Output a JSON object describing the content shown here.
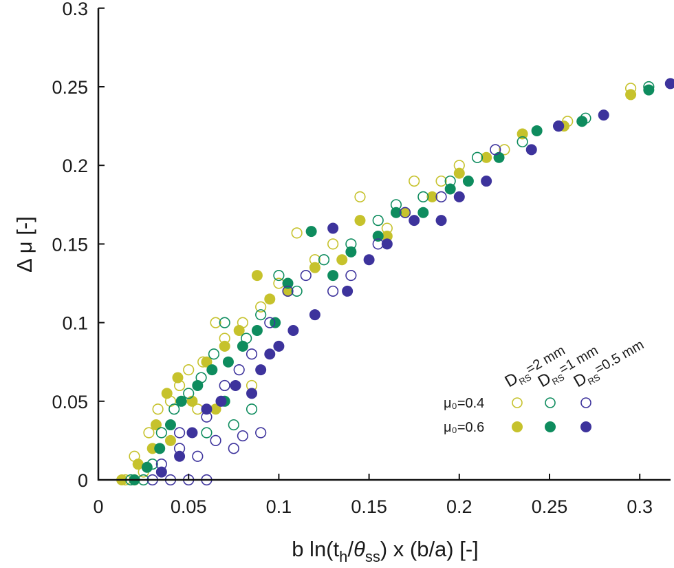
{
  "chart_data": {
    "type": "scatter",
    "xlabel_parts": [
      "b ln(t",
      "h",
      "/",
      "θ",
      "ss",
      ") x (b/a) [-]"
    ],
    "ylabel": "Δ μ [-]",
    "xlim": [
      0,
      0.317
    ],
    "ylim": [
      0,
      0.3
    ],
    "xticks": [
      "0",
      "0.05",
      "0.1",
      "0.15",
      "0.2",
      "0.25",
      "0.3"
    ],
    "yticks": [
      "0",
      "0.05",
      "0.1",
      "0.15",
      "0.2",
      "0.25",
      "0.3"
    ],
    "grid": false,
    "legend_placement": "bottom-right",
    "legend": {
      "columns": [
        {
          "symbol": "D",
          "subscript": "RS",
          "value": "=2 mm",
          "color": "#c6c22c"
        },
        {
          "symbol": "D",
          "subscript": "RS",
          "value": "=1 mm",
          "color": "#0e8c5e"
        },
        {
          "symbol": "D",
          "subscript": "RS",
          "value": "=0.5 mm",
          "color": "#3d339c"
        }
      ],
      "rows": [
        {
          "label": "μ₀=0.4",
          "marker": "open"
        },
        {
          "label": "μ₀=0.6",
          "marker": "filled"
        }
      ]
    },
    "series": [
      {
        "mu0": "0.4",
        "D_RS": "2 mm",
        "color": "#c6c22c",
        "marker": "open",
        "points": [
          [
            0.015,
            0
          ],
          [
            0.02,
            0
          ],
          [
            0.025,
            0.005
          ],
          [
            0.02,
            0.015
          ],
          [
            0.028,
            0.03
          ],
          [
            0.033,
            0.045
          ],
          [
            0.04,
            0.05
          ],
          [
            0.045,
            0.06
          ],
          [
            0.05,
            0.07
          ],
          [
            0.058,
            0.075
          ],
          [
            0.065,
            0.1
          ],
          [
            0.07,
            0.09
          ],
          [
            0.08,
            0.1
          ],
          [
            0.09,
            0.11
          ],
          [
            0.1,
            0.125
          ],
          [
            0.11,
            0.157
          ],
          [
            0.12,
            0.14
          ],
          [
            0.13,
            0.15
          ],
          [
            0.145,
            0.18
          ],
          [
            0.16,
            0.16
          ],
          [
            0.175,
            0.19
          ],
          [
            0.19,
            0.19
          ],
          [
            0.2,
            0.2
          ],
          [
            0.225,
            0.21
          ],
          [
            0.26,
            0.228
          ],
          [
            0.295,
            0.249
          ],
          [
            0.055,
            0.045
          ],
          [
            0.085,
            0.06
          ]
        ]
      },
      {
        "mu0": "0.6",
        "D_RS": "2 mm",
        "color": "#c6c22c",
        "marker": "filled",
        "points": [
          [
            0.013,
            0
          ],
          [
            0.022,
            0.01
          ],
          [
            0.03,
            0.02
          ],
          [
            0.032,
            0.035
          ],
          [
            0.038,
            0.055
          ],
          [
            0.044,
            0.065
          ],
          [
            0.052,
            0.05
          ],
          [
            0.06,
            0.075
          ],
          [
            0.07,
            0.085
          ],
          [
            0.078,
            0.095
          ],
          [
            0.088,
            0.13
          ],
          [
            0.095,
            0.115
          ],
          [
            0.105,
            0.12
          ],
          [
            0.12,
            0.135
          ],
          [
            0.135,
            0.14
          ],
          [
            0.145,
            0.165
          ],
          [
            0.16,
            0.155
          ],
          [
            0.17,
            0.17
          ],
          [
            0.185,
            0.18
          ],
          [
            0.2,
            0.195
          ],
          [
            0.215,
            0.205
          ],
          [
            0.235,
            0.22
          ],
          [
            0.258,
            0.225
          ],
          [
            0.295,
            0.245
          ],
          [
            0.065,
            0.045
          ],
          [
            0.04,
            0.025
          ]
        ]
      },
      {
        "mu0": "0.4",
        "D_RS": "1 mm",
        "color": "#0e8c5e",
        "marker": "open",
        "points": [
          [
            0.018,
            0
          ],
          [
            0.025,
            0
          ],
          [
            0.03,
            0.01
          ],
          [
            0.035,
            0.03
          ],
          [
            0.042,
            0.045
          ],
          [
            0.05,
            0.055
          ],
          [
            0.057,
            0.065
          ],
          [
            0.064,
            0.08
          ],
          [
            0.07,
            0.1
          ],
          [
            0.082,
            0.09
          ],
          [
            0.09,
            0.105
          ],
          [
            0.1,
            0.13
          ],
          [
            0.11,
            0.12
          ],
          [
            0.125,
            0.14
          ],
          [
            0.14,
            0.15
          ],
          [
            0.155,
            0.165
          ],
          [
            0.165,
            0.175
          ],
          [
            0.18,
            0.18
          ],
          [
            0.195,
            0.19
          ],
          [
            0.21,
            0.205
          ],
          [
            0.235,
            0.215
          ],
          [
            0.27,
            0.23
          ],
          [
            0.305,
            0.25
          ],
          [
            0.075,
            0.035
          ],
          [
            0.085,
            0.045
          ],
          [
            0.06,
            0.03
          ]
        ]
      },
      {
        "mu0": "0.6",
        "D_RS": "1 mm",
        "color": "#0e8c5e",
        "marker": "filled",
        "points": [
          [
            0.02,
            0
          ],
          [
            0.027,
            0.008
          ],
          [
            0.034,
            0.02
          ],
          [
            0.04,
            0.035
          ],
          [
            0.046,
            0.05
          ],
          [
            0.055,
            0.06
          ],
          [
            0.063,
            0.07
          ],
          [
            0.072,
            0.075
          ],
          [
            0.08,
            0.085
          ],
          [
            0.088,
            0.095
          ],
          [
            0.098,
            0.1
          ],
          [
            0.105,
            0.125
          ],
          [
            0.118,
            0.158
          ],
          [
            0.13,
            0.13
          ],
          [
            0.14,
            0.145
          ],
          [
            0.155,
            0.155
          ],
          [
            0.165,
            0.17
          ],
          [
            0.18,
            0.17
          ],
          [
            0.195,
            0.185
          ],
          [
            0.205,
            0.19
          ],
          [
            0.222,
            0.205
          ],
          [
            0.243,
            0.222
          ],
          [
            0.268,
            0.228
          ],
          [
            0.305,
            0.248
          ],
          [
            0.07,
            0.05
          ]
        ]
      },
      {
        "mu0": "0.4",
        "D_RS": "0.5 mm",
        "color": "#3d339c",
        "marker": "open",
        "points": [
          [
            0.03,
            0
          ],
          [
            0.04,
            0
          ],
          [
            0.05,
            0
          ],
          [
            0.06,
            0
          ],
          [
            0.035,
            0.01
          ],
          [
            0.045,
            0.02
          ],
          [
            0.055,
            0.015
          ],
          [
            0.065,
            0.025
          ],
          [
            0.075,
            0.02
          ],
          [
            0.08,
            0.028
          ],
          [
            0.09,
            0.03
          ],
          [
            0.06,
            0.04
          ],
          [
            0.07,
            0.06
          ],
          [
            0.078,
            0.07
          ],
          [
            0.085,
            0.08
          ],
          [
            0.095,
            0.1
          ],
          [
            0.105,
            0.12
          ],
          [
            0.115,
            0.13
          ],
          [
            0.13,
            0.12
          ],
          [
            0.14,
            0.13
          ],
          [
            0.155,
            0.15
          ],
          [
            0.17,
            0.17
          ],
          [
            0.19,
            0.18
          ],
          [
            0.22,
            0.21
          ],
          [
            0.255,
            0.225
          ],
          [
            0.045,
            0.03
          ]
        ]
      },
      {
        "mu0": "0.6",
        "D_RS": "0.5 mm",
        "color": "#3d339c",
        "marker": "filled",
        "points": [
          [
            0.035,
            0.005
          ],
          [
            0.045,
            0.015
          ],
          [
            0.052,
            0.03
          ],
          [
            0.06,
            0.045
          ],
          [
            0.068,
            0.05
          ],
          [
            0.076,
            0.06
          ],
          [
            0.085,
            0.055
          ],
          [
            0.09,
            0.07
          ],
          [
            0.1,
            0.085
          ],
          [
            0.108,
            0.095
          ],
          [
            0.12,
            0.105
          ],
          [
            0.13,
            0.16
          ],
          [
            0.138,
            0.12
          ],
          [
            0.15,
            0.14
          ],
          [
            0.16,
            0.15
          ],
          [
            0.175,
            0.165
          ],
          [
            0.19,
            0.165
          ],
          [
            0.2,
            0.18
          ],
          [
            0.215,
            0.19
          ],
          [
            0.24,
            0.21
          ],
          [
            0.255,
            0.225
          ],
          [
            0.28,
            0.232
          ],
          [
            0.317,
            0.252
          ],
          [
            0.095,
            0.08
          ]
        ]
      }
    ]
  }
}
